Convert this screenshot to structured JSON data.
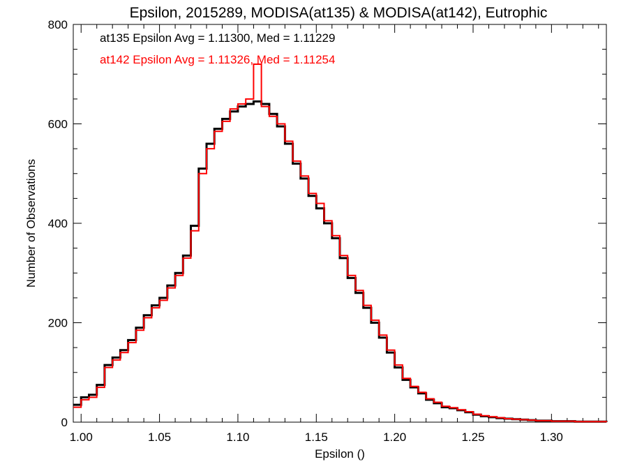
{
  "chart_data": {
    "type": "line",
    "title": "Epsilon, 2015289, MODISA(at135) & MODISA(at142), Eutrophic",
    "xlabel": "Epsilon ()",
    "ylabel": "Number of Observations",
    "xlim": [
      0.995,
      1.335
    ],
    "ylim": [
      0,
      800
    ],
    "x_ticks": [
      1.0,
      1.05,
      1.1,
      1.15,
      1.2,
      1.25,
      1.3
    ],
    "x_tick_labels": [
      "1.00",
      "1.05",
      "1.10",
      "1.15",
      "1.20",
      "1.25",
      "1.30"
    ],
    "y_ticks": [
      0,
      200,
      400,
      600,
      800
    ],
    "y_tick_labels": [
      "0",
      "200",
      "400",
      "600",
      "800"
    ],
    "grid": false,
    "legend_placement": "top-left",
    "annotations": [
      {
        "text": "at135 Epsilon Avg = 1.11300, Med = 1.11229",
        "color": "#000000"
      },
      {
        "text": "at142 Epsilon Avg = 1.11326, Med = 1.11254",
        "color": "#ff0000"
      }
    ],
    "series": [
      {
        "color": "#000000",
        "x": [
          0.995,
          1.0,
          1.005,
          1.01,
          1.015,
          1.02,
          1.025,
          1.03,
          1.035,
          1.04,
          1.045,
          1.05,
          1.055,
          1.06,
          1.065,
          1.07,
          1.075,
          1.08,
          1.085,
          1.09,
          1.095,
          1.1,
          1.105,
          1.11,
          1.115,
          1.12,
          1.125,
          1.13,
          1.135,
          1.14,
          1.145,
          1.15,
          1.155,
          1.16,
          1.165,
          1.17,
          1.175,
          1.18,
          1.185,
          1.19,
          1.195,
          1.2,
          1.205,
          1.21,
          1.215,
          1.22,
          1.225,
          1.23,
          1.235,
          1.24,
          1.245,
          1.25,
          1.255,
          1.26,
          1.265,
          1.27,
          1.275,
          1.28,
          1.285,
          1.29,
          1.295,
          1.3,
          1.305,
          1.31,
          1.315,
          1.32,
          1.325,
          1.33,
          1.335
        ],
        "y": [
          35,
          50,
          55,
          75,
          115,
          130,
          145,
          165,
          190,
          215,
          235,
          250,
          275,
          300,
          335,
          395,
          510,
          560,
          590,
          610,
          625,
          635,
          640,
          645,
          640,
          620,
          595,
          560,
          520,
          490,
          455,
          430,
          400,
          370,
          330,
          290,
          260,
          230,
          200,
          170,
          140,
          110,
          85,
          70,
          58,
          45,
          38,
          30,
          28,
          24,
          20,
          15,
          12,
          10,
          8,
          7,
          6,
          5,
          4,
          3,
          3,
          2,
          2,
          2,
          1,
          1,
          1,
          1,
          0
        ]
      },
      {
        "color": "#ff0000",
        "x": [
          0.995,
          1.0,
          1.005,
          1.01,
          1.015,
          1.02,
          1.025,
          1.03,
          1.035,
          1.04,
          1.045,
          1.05,
          1.055,
          1.06,
          1.065,
          1.07,
          1.075,
          1.08,
          1.085,
          1.09,
          1.095,
          1.1,
          1.105,
          1.11,
          1.115,
          1.12,
          1.125,
          1.13,
          1.135,
          1.14,
          1.145,
          1.15,
          1.155,
          1.16,
          1.165,
          1.17,
          1.175,
          1.18,
          1.185,
          1.19,
          1.195,
          1.2,
          1.205,
          1.21,
          1.215,
          1.22,
          1.225,
          1.23,
          1.235,
          1.24,
          1.245,
          1.25,
          1.255,
          1.26,
          1.265,
          1.27,
          1.275,
          1.28,
          1.285,
          1.29,
          1.295,
          1.3,
          1.305,
          1.31,
          1.315,
          1.32,
          1.325,
          1.33,
          1.335
        ],
        "y": [
          30,
          45,
          50,
          70,
          110,
          125,
          140,
          160,
          185,
          210,
          230,
          245,
          270,
          295,
          330,
          385,
          500,
          550,
          585,
          605,
          630,
          640,
          650,
          720,
          635,
          615,
          600,
          565,
          525,
          495,
          460,
          440,
          405,
          375,
          335,
          295,
          265,
          235,
          205,
          175,
          145,
          115,
          88,
          72,
          60,
          47,
          40,
          32,
          29,
          25,
          21,
          16,
          13,
          11,
          9,
          7,
          6,
          5,
          4,
          3,
          3,
          2,
          2,
          2,
          1,
          1,
          1,
          1,
          0
        ]
      }
    ]
  }
}
